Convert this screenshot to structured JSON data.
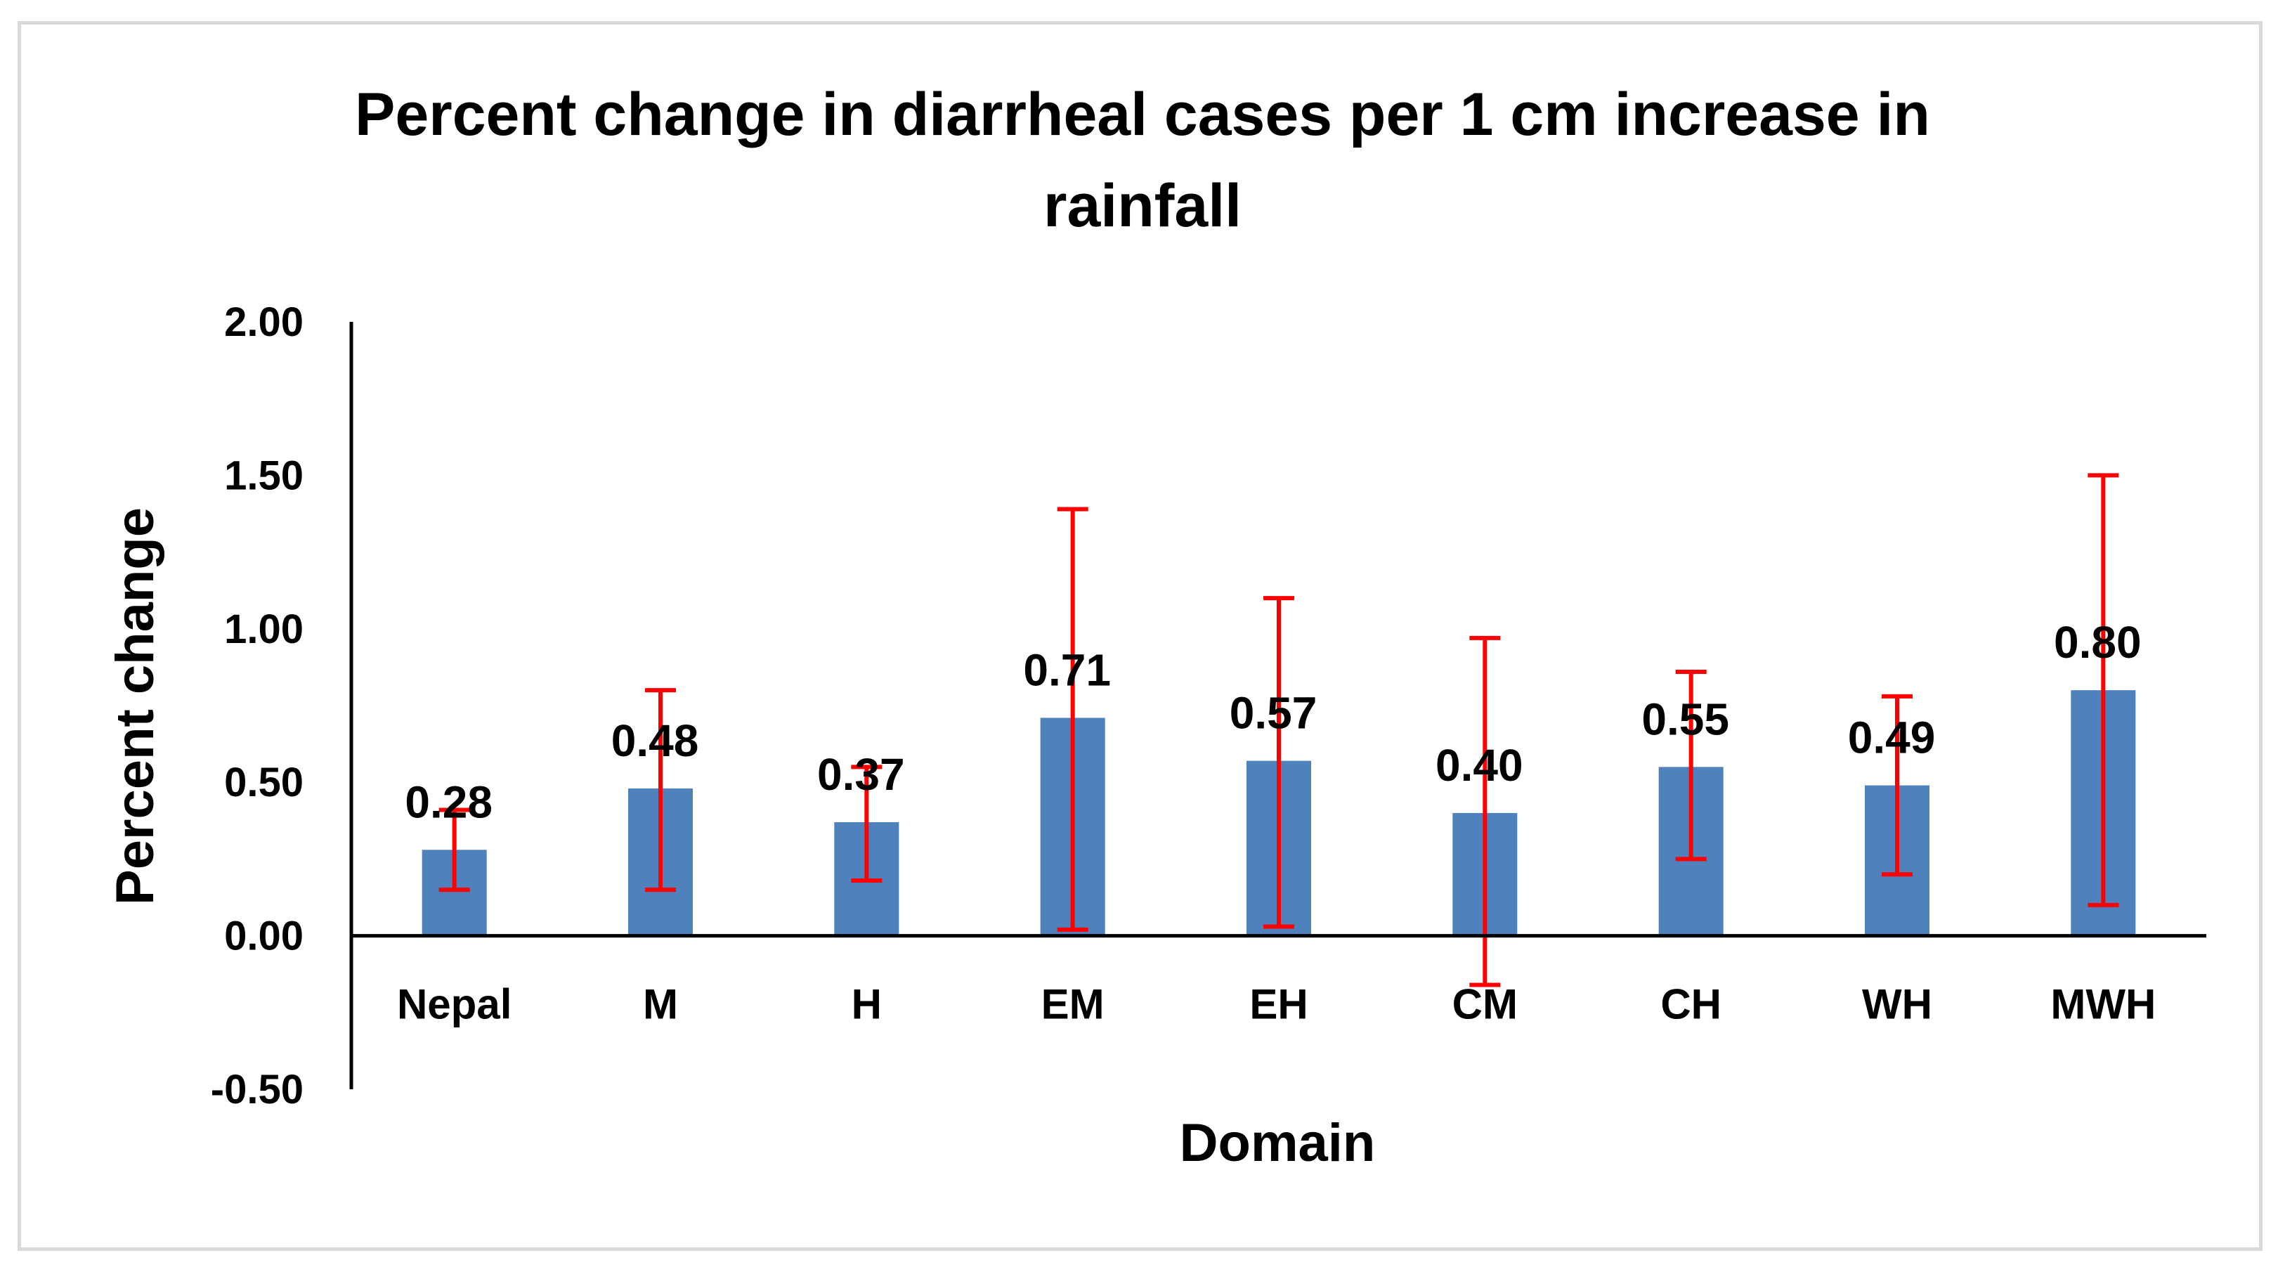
{
  "chart_data": {
    "type": "bar",
    "title_lines": [
      "Percent change in diarrheal cases per 1 cm increase in",
      "rainfall"
    ],
    "xlabel": "Domain",
    "ylabel": "Percent change",
    "ylim": [
      -0.5,
      2.0
    ],
    "yticks": [
      -0.5,
      0.0,
      0.5,
      1.0,
      1.5,
      2.0
    ],
    "ytick_labels": [
      "-0.50",
      "0.00",
      "0.50",
      "1.00",
      "1.50",
      "2.00"
    ],
    "grid": false,
    "legend": "none",
    "categories": [
      "Nepal",
      "M",
      "H",
      "EM",
      "EH",
      "CM",
      "CH",
      "WH",
      "MWH"
    ],
    "values": [
      0.28,
      0.48,
      0.37,
      0.71,
      0.57,
      0.4,
      0.55,
      0.49,
      0.8
    ],
    "value_labels": [
      "0.28",
      "0.48",
      "0.37",
      "0.71",
      "0.57",
      "0.40",
      "0.55",
      "0.49",
      "0.80"
    ],
    "error_low": [
      0.15,
      0.15,
      0.18,
      0.02,
      0.03,
      -0.16,
      0.25,
      0.2,
      0.1
    ],
    "error_high": [
      0.41,
      0.8,
      0.55,
      1.39,
      1.1,
      0.97,
      0.86,
      0.78,
      1.5
    ],
    "colors": {
      "bar": "#4f81bd",
      "error_bar": "#ff0000",
      "axis": "#000000",
      "frame": "#d9d9d9"
    }
  }
}
